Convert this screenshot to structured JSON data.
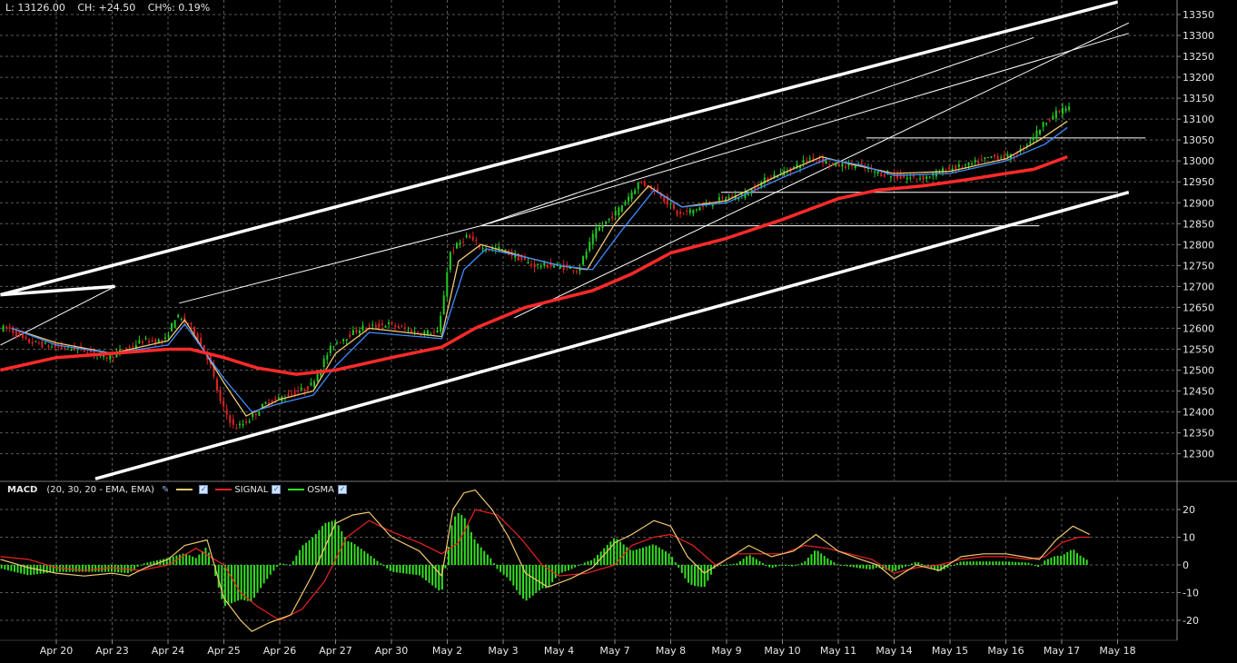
{
  "info_bar": {
    "last": "L: 13126.00",
    "change": "CH: +24.50",
    "change_pct": "CH%: 0.19%"
  },
  "colors": {
    "background": "#000000",
    "grid": "#5a5a5a",
    "up_candle": "#22cc22",
    "down_candle": "#dd2222",
    "ema_fast": "#f0c870",
    "ema_slow": "#3f8cff",
    "ma_long": "#ff2a2a",
    "trendline": "#ffffff",
    "macd_line": "#f0c870",
    "signal_line": "#ee2222",
    "osma": "#33dd22"
  },
  "macd_legend": {
    "name": "MACD",
    "params": "(20, 30, 20 - EMA, EMA)",
    "macd_icon": "pencil-icon",
    "signal_label": "SIGNAL",
    "osma_label": "OSMA"
  },
  "chart_data": [
    {
      "type": "candlestick",
      "title": "",
      "x": [
        "Apr 20",
        "Apr 23",
        "Apr 24",
        "Apr 25",
        "Apr 26",
        "Apr 27",
        "Apr 30",
        "May 2",
        "May 3",
        "May 4",
        "May 7",
        "May 8",
        "May 9",
        "May 10",
        "May 11",
        "May 14",
        "May 15",
        "May 16",
        "May 17",
        "May 18"
      ],
      "ylim": [
        12250,
        13375
      ],
      "yticks": [
        12300,
        12350,
        12400,
        12450,
        12500,
        12550,
        12600,
        12650,
        12700,
        12750,
        12800,
        12850,
        12900,
        12950,
        13000,
        13050,
        13100,
        13150,
        13200,
        13250,
        13300,
        13350
      ],
      "grid": true,
      "price_path": [
        [
          -0.8,
          12600
        ],
        [
          -0.5,
          12570
        ],
        [
          0,
          12555
        ],
        [
          0.5,
          12550
        ],
        [
          1,
          12530
        ],
        [
          1.3,
          12550
        ],
        [
          1.6,
          12570
        ],
        [
          2,
          12570
        ],
        [
          2.2,
          12630
        ],
        [
          2.5,
          12600
        ],
        [
          2.8,
          12520
        ],
        [
          3.0,
          12420
        ],
        [
          3.25,
          12360
        ],
        [
          3.5,
          12380
        ],
        [
          3.8,
          12420
        ],
        [
          4.2,
          12440
        ],
        [
          4.6,
          12460
        ],
        [
          5.0,
          12560
        ],
        [
          5.5,
          12600
        ],
        [
          6.0,
          12610
        ],
        [
          6.5,
          12590
        ],
        [
          6.9,
          12590
        ],
        [
          7.1,
          12780
        ],
        [
          7.4,
          12820
        ],
        [
          7.7,
          12790
        ],
        [
          8.0,
          12790
        ],
        [
          8.3,
          12770
        ],
        [
          8.6,
          12750
        ],
        [
          9.0,
          12750
        ],
        [
          9.4,
          12740
        ],
        [
          9.7,
          12830
        ],
        [
          10.1,
          12880
        ],
        [
          10.5,
          12950
        ],
        [
          10.8,
          12930
        ],
        [
          11.2,
          12870
        ],
        [
          11.6,
          12890
        ],
        [
          12.0,
          12910
        ],
        [
          12.4,
          12920
        ],
        [
          12.8,
          12960
        ],
        [
          13.2,
          12980
        ],
        [
          13.6,
          13010
        ],
        [
          14.0,
          12990
        ],
        [
          14.4,
          12990
        ],
        [
          14.8,
          12970
        ],
        [
          15.2,
          12960
        ],
        [
          15.6,
          12960
        ],
        [
          16.0,
          12980
        ],
        [
          16.4,
          12990
        ],
        [
          16.8,
          13010
        ],
        [
          17.2,
          13010
        ],
        [
          17.5,
          13050
        ],
        [
          17.8,
          13100
        ],
        [
          18.1,
          13126
        ]
      ],
      "series": [
        {
          "kind": "ema_fast",
          "values": [
            [
              -0.8,
              12600
            ],
            [
              0,
              12565
            ],
            [
              1,
              12540
            ],
            [
              2,
              12570
            ],
            [
              2.3,
              12620
            ],
            [
              3.0,
              12470
            ],
            [
              3.4,
              12390
            ],
            [
              4.0,
              12430
            ],
            [
              4.6,
              12450
            ],
            [
              5.0,
              12540
            ],
            [
              5.6,
              12600
            ],
            [
              6.9,
              12580
            ],
            [
              7.2,
              12760
            ],
            [
              7.6,
              12800
            ],
            [
              8.4,
              12770
            ],
            [
              9.0,
              12750
            ],
            [
              9.5,
              12740
            ],
            [
              10.0,
              12850
            ],
            [
              10.6,
              12940
            ],
            [
              11.2,
              12890
            ],
            [
              12.0,
              12905
            ],
            [
              13.0,
              12970
            ],
            [
              13.7,
              13010
            ],
            [
              14.3,
              12990
            ],
            [
              15.0,
              12970
            ],
            [
              16.0,
              12975
            ],
            [
              17.0,
              13005
            ],
            [
              17.6,
              13050
            ],
            [
              18.1,
              13095
            ]
          ]
        },
        {
          "kind": "ema_slow",
          "values": [
            [
              -0.8,
              12600
            ],
            [
              0,
              12560
            ],
            [
              1,
              12540
            ],
            [
              2,
              12560
            ],
            [
              2.3,
              12610
            ],
            [
              3.0,
              12480
            ],
            [
              3.5,
              12400
            ],
            [
              4.0,
              12420
            ],
            [
              4.6,
              12440
            ],
            [
              5.0,
              12510
            ],
            [
              5.6,
              12590
            ],
            [
              6.9,
              12575
            ],
            [
              7.3,
              12740
            ],
            [
              7.7,
              12790
            ],
            [
              8.4,
              12770
            ],
            [
              9.0,
              12750
            ],
            [
              9.6,
              12740
            ],
            [
              10.1,
              12830
            ],
            [
              10.7,
              12930
            ],
            [
              11.2,
              12890
            ],
            [
              12.0,
              12900
            ],
            [
              13.0,
              12960
            ],
            [
              13.8,
              13005
            ],
            [
              14.4,
              12990
            ],
            [
              15.0,
              12965
            ],
            [
              16.0,
              12970
            ],
            [
              17.0,
              13000
            ],
            [
              17.7,
              13040
            ],
            [
              18.1,
              13080
            ]
          ]
        },
        {
          "kind": "ma_long",
          "values": [
            [
              -1,
              12500
            ],
            [
              0,
              12530
            ],
            [
              1,
              12540
            ],
            [
              2,
              12550
            ],
            [
              2.4,
              12550
            ],
            [
              3.0,
              12530
            ],
            [
              3.6,
              12505
            ],
            [
              4.3,
              12490
            ],
            [
              5.0,
              12500
            ],
            [
              6.0,
              12530
            ],
            [
              6.9,
              12555
            ],
            [
              7.5,
              12600
            ],
            [
              8.4,
              12650
            ],
            [
              9.0,
              12670
            ],
            [
              9.6,
              12690
            ],
            [
              10.3,
              12730
            ],
            [
              11.0,
              12780
            ],
            [
              12.0,
              12815
            ],
            [
              13.0,
              12860
            ],
            [
              14.0,
              12910
            ],
            [
              14.7,
              12930
            ],
            [
              15.5,
              12940
            ],
            [
              16.3,
              12955
            ],
            [
              17.0,
              12970
            ],
            [
              17.5,
              12980
            ],
            [
              18.1,
              13010
            ]
          ]
        }
      ],
      "trendlines": [
        {
          "kind": "channel",
          "points": [
            [
              -1,
              12680
            ],
            [
              1.05,
              12700
            ]
          ]
        },
        {
          "kind": "channel",
          "points": [
            [
              -1,
              12680
            ],
            [
              19.0,
              13380
            ]
          ]
        },
        {
          "kind": "channel",
          "points": [
            [
              0.7,
              12240
            ],
            [
              19.2,
              12925
            ]
          ]
        },
        {
          "kind": "thin",
          "points": [
            [
              -1,
              12560
            ],
            [
              1.05,
              12700
            ]
          ]
        },
        {
          "kind": "thin",
          "points": [
            [
              2.2,
              12660
            ],
            [
              7.6,
              12845
            ],
            [
              17.5,
              13295
            ]
          ]
        },
        {
          "kind": "thin",
          "points": [
            [
              7.6,
              12845
            ],
            [
              19.2,
              13305
            ]
          ]
        },
        {
          "kind": "thin",
          "points": [
            [
              8.2,
              12625
            ],
            [
              19.2,
              13330
            ]
          ]
        },
        {
          "kind": "thin",
          "points": [
            [
              7.6,
              12845
            ],
            [
              17.6,
              12845
            ]
          ]
        },
        {
          "kind": "thin",
          "points": [
            [
              11.9,
              12925
            ],
            [
              19.0,
              12925
            ]
          ]
        },
        {
          "kind": "thin",
          "points": [
            [
              14.5,
              13055
            ],
            [
              19.5,
              13055
            ]
          ]
        }
      ]
    },
    {
      "type": "line",
      "title": "MACD",
      "ylim": [
        -27,
        31
      ],
      "yticks": [
        -20,
        -10,
        0,
        10,
        20
      ],
      "series": [
        {
          "name": "MACD",
          "kind": "macd",
          "values": [
            [
              -1,
              2
            ],
            [
              -0.5,
              -1
            ],
            [
              0,
              -3
            ],
            [
              0.5,
              -4
            ],
            [
              1,
              -3
            ],
            [
              1.3,
              -4
            ],
            [
              1.6,
              -1
            ],
            [
              2,
              2
            ],
            [
              2.3,
              7
            ],
            [
              2.7,
              9
            ],
            [
              3.0,
              -12
            ],
            [
              3.3,
              -20
            ],
            [
              3.5,
              -24
            ],
            [
              3.8,
              -21
            ],
            [
              4.2,
              -18
            ],
            [
              4.6,
              -3
            ],
            [
              5.0,
              15
            ],
            [
              5.3,
              18
            ],
            [
              5.6,
              19
            ],
            [
              6.0,
              10
            ],
            [
              6.5,
              5
            ],
            [
              6.9,
              -4
            ],
            [
              7.1,
              20
            ],
            [
              7.3,
              26
            ],
            [
              7.5,
              27
            ],
            [
              7.8,
              20
            ],
            [
              8.1,
              10
            ],
            [
              8.4,
              -3
            ],
            [
              8.8,
              -8
            ],
            [
              9.2,
              -5
            ],
            [
              9.6,
              -1
            ],
            [
              10.0,
              8
            ],
            [
              10.3,
              11
            ],
            [
              10.7,
              16
            ],
            [
              11.0,
              14
            ],
            [
              11.3,
              3
            ],
            [
              11.6,
              -3
            ],
            [
              12.0,
              2
            ],
            [
              12.4,
              7
            ],
            [
              12.8,
              3
            ],
            [
              13.2,
              5
            ],
            [
              13.6,
              11
            ],
            [
              14.0,
              5
            ],
            [
              14.4,
              2
            ],
            [
              14.7,
              0
            ],
            [
              15.0,
              -5
            ],
            [
              15.4,
              0
            ],
            [
              15.8,
              -2
            ],
            [
              16.2,
              3
            ],
            [
              16.6,
              4
            ],
            [
              17.0,
              4
            ],
            [
              17.3,
              3
            ],
            [
              17.6,
              2
            ],
            [
              17.9,
              9
            ],
            [
              18.2,
              14
            ],
            [
              18.5,
              11
            ]
          ]
        },
        {
          "name": "SIGNAL",
          "kind": "signal",
          "values": [
            [
              -1,
              3
            ],
            [
              -0.5,
              2
            ],
            [
              0,
              -1
            ],
            [
              0.5,
              -2
            ],
            [
              1,
              -1
            ],
            [
              1.5,
              -2
            ],
            [
              2,
              0
            ],
            [
              2.5,
              6
            ],
            [
              3.0,
              0
            ],
            [
              3.3,
              -10
            ],
            [
              3.6,
              -15
            ],
            [
              4.0,
              -20
            ],
            [
              4.4,
              -16
            ],
            [
              4.8,
              -6
            ],
            [
              5.2,
              10
            ],
            [
              5.6,
              16
            ],
            [
              6.0,
              12
            ],
            [
              6.5,
              8
            ],
            [
              6.9,
              4
            ],
            [
              7.2,
              8
            ],
            [
              7.5,
              20
            ],
            [
              7.9,
              18
            ],
            [
              8.3,
              10
            ],
            [
              8.7,
              0
            ],
            [
              9.0,
              -4
            ],
            [
              9.5,
              -3
            ],
            [
              10.0,
              0
            ],
            [
              10.3,
              7
            ],
            [
              10.7,
              10
            ],
            [
              11.0,
              11
            ],
            [
              11.4,
              7
            ],
            [
              11.8,
              0
            ],
            [
              12.2,
              4
            ],
            [
              12.6,
              4
            ],
            [
              13.0,
              4
            ],
            [
              13.4,
              7
            ],
            [
              13.8,
              6
            ],
            [
              14.2,
              4
            ],
            [
              14.6,
              2
            ],
            [
              15.0,
              -3
            ],
            [
              15.4,
              -1
            ],
            [
              15.8,
              0
            ],
            [
              16.2,
              2
            ],
            [
              16.6,
              3
            ],
            [
              17.0,
              3
            ],
            [
              17.4,
              2
            ],
            [
              17.7,
              3
            ],
            [
              18.0,
              8
            ],
            [
              18.3,
              10
            ],
            [
              18.5,
              10
            ]
          ]
        }
      ]
    }
  ]
}
